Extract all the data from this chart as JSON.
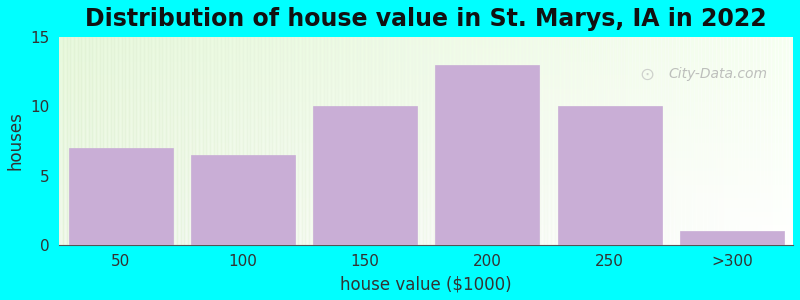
{
  "title": "Distribution of house value in St. Marys, IA in 2022",
  "categories": [
    "50",
    "100",
    "150",
    "200",
    "250",
    ">300"
  ],
  "values": [
    7,
    6.5,
    10,
    13,
    10,
    1
  ],
  "bar_color": "#c9aed6",
  "xlabel": "house value ($1000)",
  "ylabel": "houses",
  "ylim": [
    0,
    15
  ],
  "yticks": [
    0,
    5,
    10,
    15
  ],
  "bg_color": "#00ffff",
  "title_fontsize": 17,
  "axis_label_fontsize": 12,
  "tick_fontsize": 11,
  "watermark": "City-Data.com"
}
